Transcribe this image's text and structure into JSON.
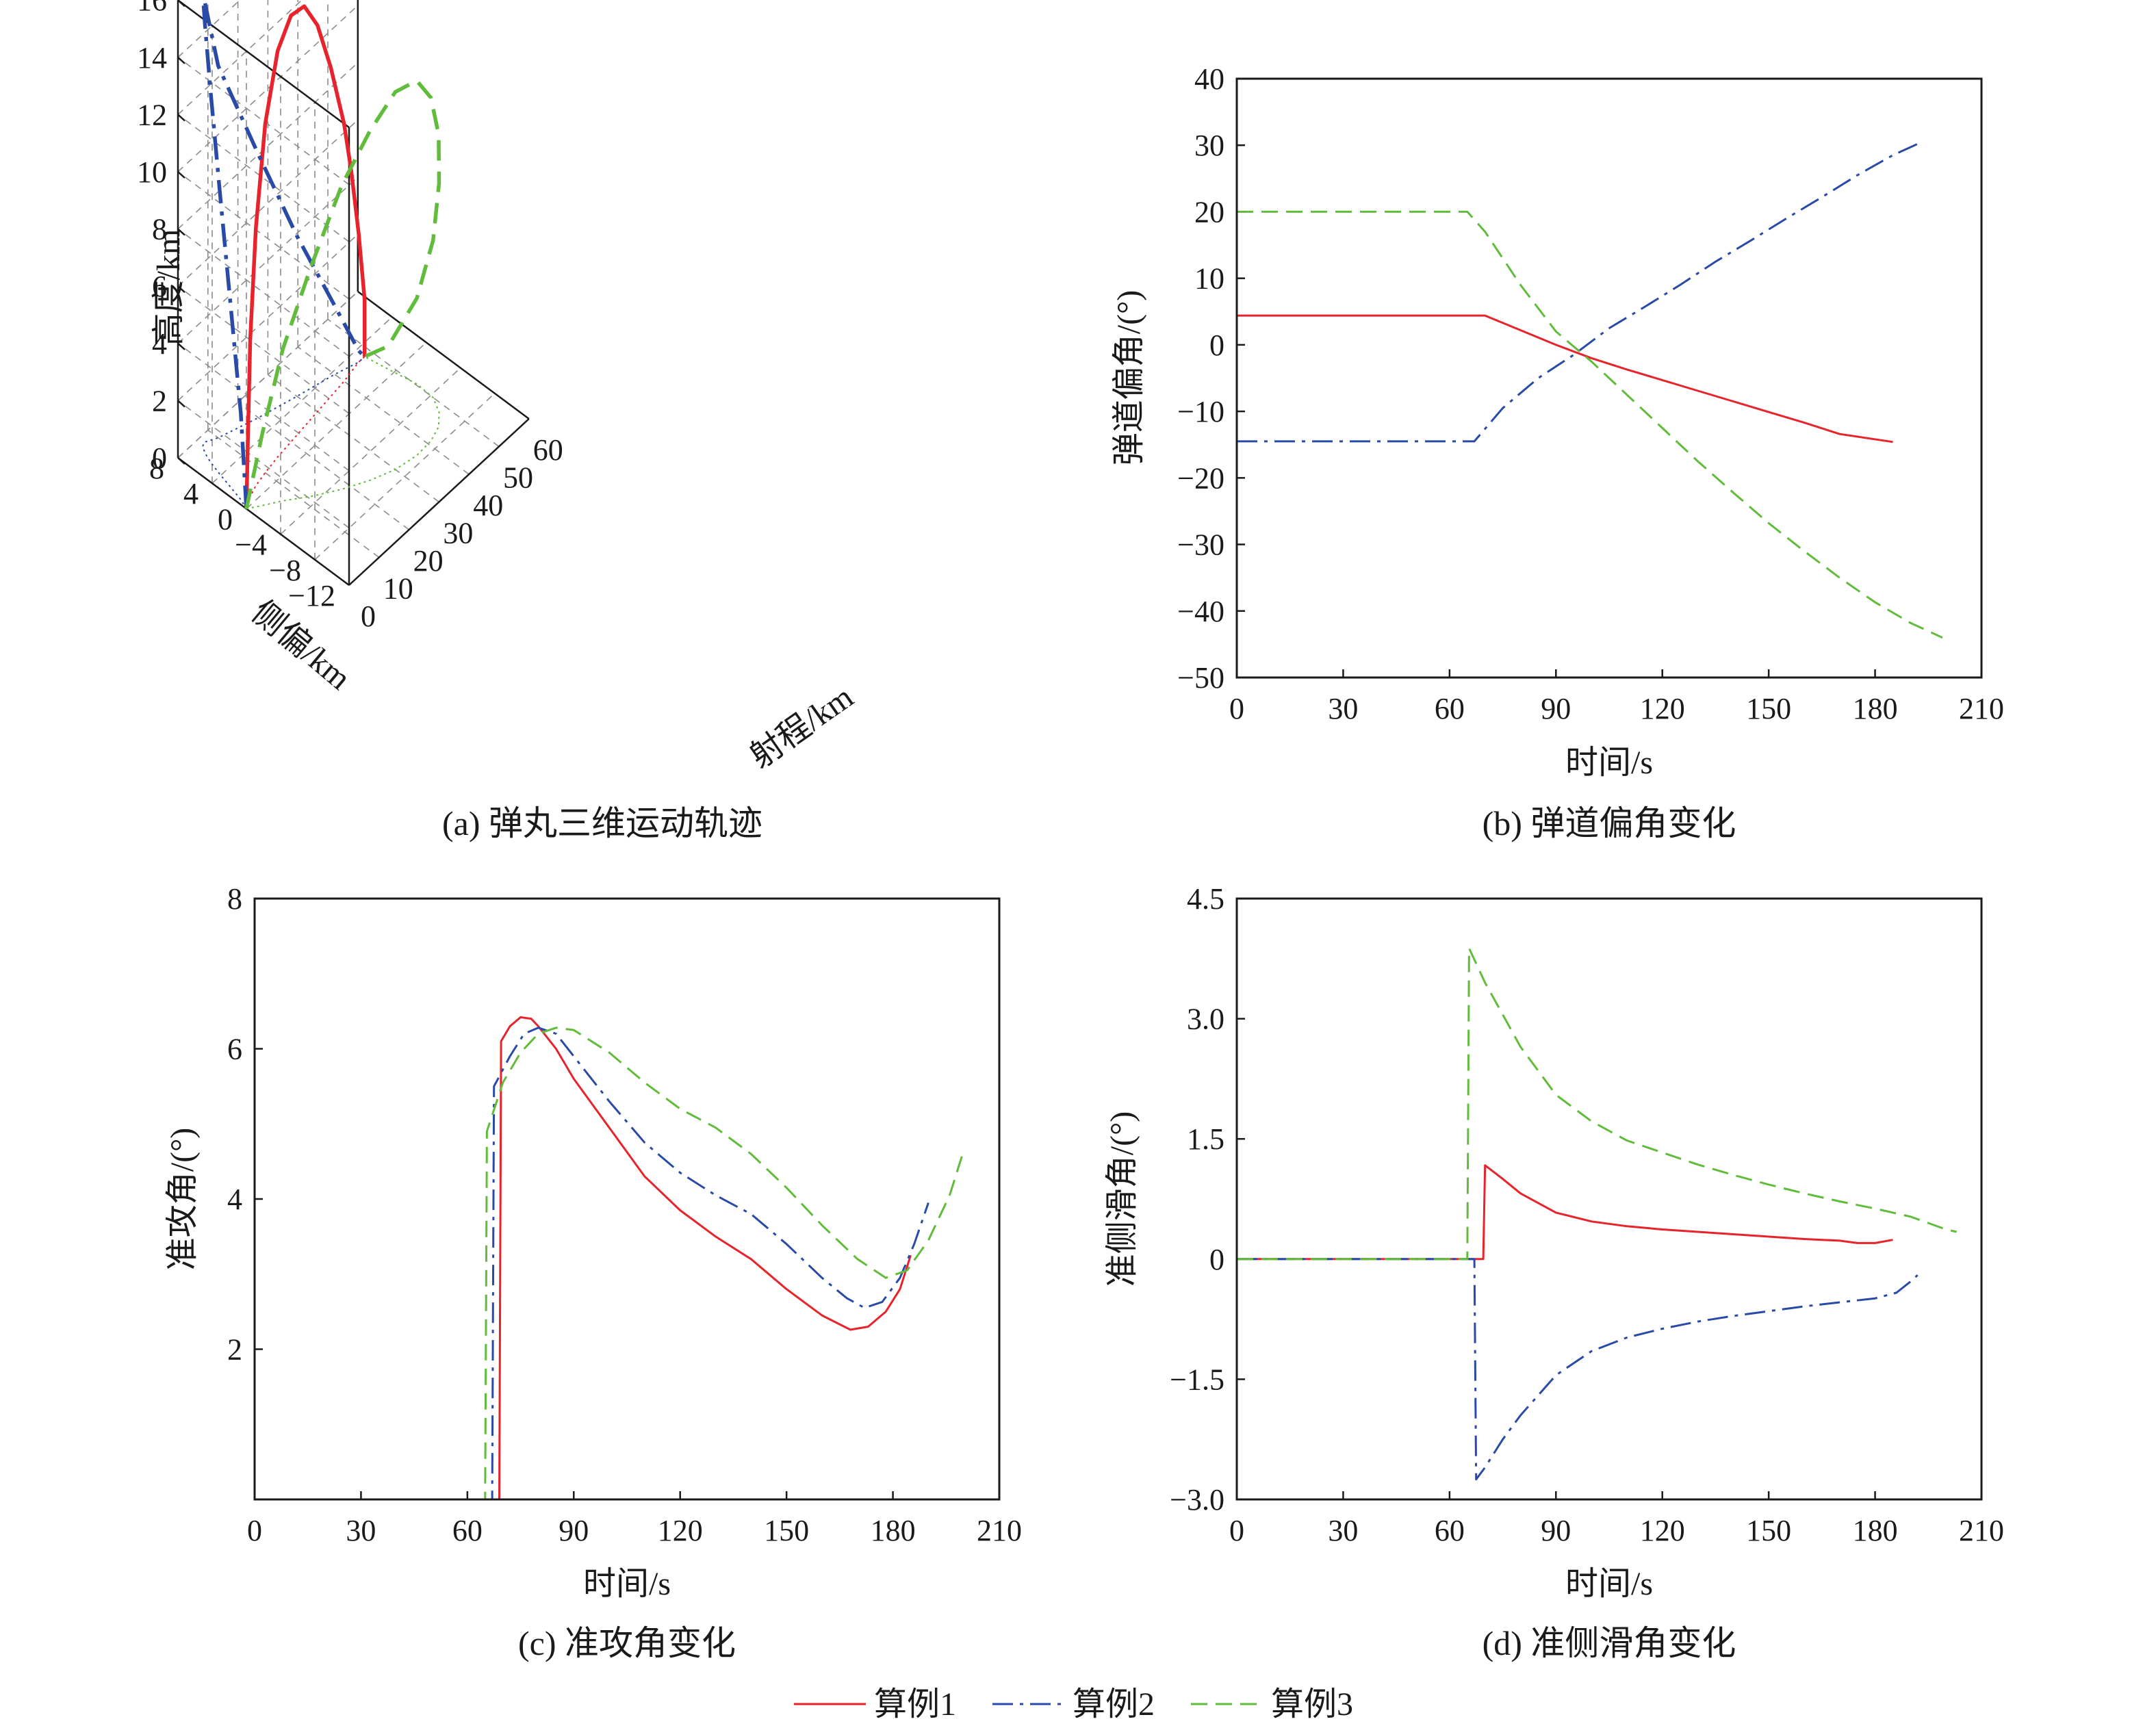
{
  "colors": {
    "case1": "#e8232b",
    "case2": "#2a4aa8",
    "case3": "#62bc3b",
    "axis": "#1a1a1a"
  },
  "legend": {
    "items": [
      "算例1",
      "算例2",
      "算例3"
    ]
  },
  "chart_data": [
    {
      "id": "a",
      "type": "line3d",
      "caption": "(a) 弹丸三维运动轨迹",
      "zlabel": "高度/km",
      "ylabel": "侧偏/km",
      "xlabel": "射程/km",
      "z_ticks": [
        "0",
        "2",
        "4",
        "6",
        "8",
        "10",
        "12",
        "14",
        "16"
      ],
      "y_ticks": [
        "8",
        "4",
        "0",
        "−4",
        "−8",
        "−12"
      ],
      "x_ticks": [
        "0",
        "10",
        "20",
        "30",
        "40",
        "50",
        "60"
      ],
      "series": [
        {
          "name": "算例1",
          "style": "solid",
          "points": [
            [
              0,
              0,
              0
            ],
            [
              1,
              0.2,
              2
            ],
            [
              3,
              0.6,
              5.5
            ],
            [
              6,
              1,
              9
            ],
            [
              10,
              1.3,
              12.2
            ],
            [
              15,
              1.6,
              14.2
            ],
            [
              20,
              1.8,
              14.9
            ],
            [
              25,
              2,
              14.7
            ],
            [
              30,
              2.2,
              13.5
            ],
            [
              35,
              2.4,
              11.5
            ],
            [
              40,
              2.6,
              9
            ],
            [
              43,
              2.8,
              7
            ],
            [
              46,
              3,
              4.5
            ],
            [
              48,
              3,
              2
            ],
            [
              48,
              3,
              0
            ]
          ]
        },
        {
          "name": "算例2",
          "style": "dashdot",
          "points": [
            [
              0,
              0,
              0
            ],
            [
              1,
              1,
              3
            ],
            [
              2,
              2.6,
              6.5
            ],
            [
              3,
              4.2,
              10
            ],
            [
              4,
              5.6,
              13
            ],
            [
              5,
              6.6,
              15
            ],
            [
              6,
              7.2,
              15.8
            ],
            [
              7,
              7.4,
              15.5
            ],
            [
              10,
              6.8,
              13
            ],
            [
              20,
              5.6,
              9.2
            ],
            [
              30,
              4.6,
              5.6
            ],
            [
              40,
              3.7,
              2.4
            ],
            [
              46,
              3,
              0.4
            ],
            [
              48,
              3,
              0
            ]
          ]
        },
        {
          "name": "算例3",
          "style": "dashed",
          "points": [
            [
              0,
              0,
              0
            ],
            [
              3,
              -0.8,
              2.5
            ],
            [
              7,
              -1.8,
              5.3
            ],
            [
              12,
              -3.3,
              8
            ],
            [
              18,
              -4.8,
              10.6
            ],
            [
              24,
              -6,
              12.2
            ],
            [
              30,
              -6.9,
              13.2
            ],
            [
              36,
              -7.3,
              13.1
            ],
            [
              41,
              -7.2,
              12
            ],
            [
              45,
              -6.7,
              10.2
            ],
            [
              48,
              -5.7,
              8
            ],
            [
              50,
              -4.3,
              5.5
            ],
            [
              50.3,
              -2.3,
              3
            ],
            [
              49,
              0.6,
              0.8
            ],
            [
              48,
              3,
              0
            ]
          ]
        }
      ]
    },
    {
      "id": "b",
      "type": "line",
      "caption": "(b) 弹道偏角变化",
      "xlabel": "时间/s",
      "ylabel": "弹道偏角/(°)",
      "xlim": [
        0,
        210
      ],
      "ylim": [
        -50,
        40
      ],
      "x_ticks": [
        "0",
        "30",
        "60",
        "90",
        "120",
        "150",
        "180",
        "210"
      ],
      "y_ticks": [
        "−50",
        "−40",
        "−30",
        "−20",
        "−10",
        "0",
        "10",
        "20",
        "30",
        "40"
      ],
      "series": [
        {
          "name": "算例1",
          "style": "solid",
          "points": [
            [
              0,
              4.4
            ],
            [
              70,
              4.4
            ],
            [
              80,
              2.2
            ],
            [
              90,
              0
            ],
            [
              100,
              -2
            ],
            [
              110,
              -3.7
            ],
            [
              120,
              -5.3
            ],
            [
              130,
              -6.9
            ],
            [
              140,
              -8.5
            ],
            [
              150,
              -10.1
            ],
            [
              160,
              -11.7
            ],
            [
              170,
              -13.4
            ],
            [
              185,
              -14.6
            ]
          ]
        },
        {
          "name": "算例2",
          "style": "dashdot",
          "points": [
            [
              0,
              -14.5
            ],
            [
              67,
              -14.5
            ],
            [
              75,
              -9.5
            ],
            [
              85,
              -5
            ],
            [
              95,
              -1.5
            ],
            [
              105,
              2.5
            ],
            [
              115,
              5.7
            ],
            [
              125,
              9
            ],
            [
              135,
              12.5
            ],
            [
              145,
              15.7
            ],
            [
              155,
              19
            ],
            [
              165,
              22.2
            ],
            [
              175,
              25.5
            ],
            [
              185,
              28.5
            ],
            [
              192,
              30.2
            ]
          ]
        },
        {
          "name": "算例3",
          "style": "dashed",
          "points": [
            [
              0,
              20
            ],
            [
              65,
              20
            ],
            [
              70,
              17
            ],
            [
              80,
              9
            ],
            [
              90,
              2
            ],
            [
              100,
              -2.5
            ],
            [
              110,
              -7.5
            ],
            [
              120,
              -12.5
            ],
            [
              130,
              -17.5
            ],
            [
              140,
              -22.2
            ],
            [
              150,
              -26.8
            ],
            [
              160,
              -31
            ],
            [
              170,
              -35
            ],
            [
              180,
              -38.7
            ],
            [
              190,
              -41.8
            ],
            [
              199,
              -44
            ]
          ]
        }
      ]
    },
    {
      "id": "c",
      "type": "line",
      "caption": "(c) 准攻角变化",
      "xlabel": "时间/s",
      "ylabel": "准攻角/(°)",
      "xlim": [
        0,
        210
      ],
      "ylim": [
        0,
        8
      ],
      "x_ticks": [
        "0",
        "30",
        "60",
        "90",
        "120",
        "150",
        "180",
        "210"
      ],
      "y_ticks": [
        "2",
        "4",
        "6",
        "8"
      ],
      "series": [
        {
          "name": "算例1",
          "style": "solid",
          "points": [
            [
              0,
              0
            ],
            [
              69,
              0
            ],
            [
              69.5,
              6.1
            ],
            [
              72,
              6.3
            ],
            [
              75,
              6.42
            ],
            [
              78,
              6.4
            ],
            [
              80,
              6.3
            ],
            [
              85,
              6
            ],
            [
              90,
              5.6
            ],
            [
              100,
              4.95
            ],
            [
              110,
              4.3
            ],
            [
              120,
              3.85
            ],
            [
              130,
              3.5
            ],
            [
              140,
              3.2
            ],
            [
              150,
              2.8
            ],
            [
              160,
              2.45
            ],
            [
              168,
              2.26
            ],
            [
              173,
              2.3
            ],
            [
              178,
              2.5
            ],
            [
              182,
              2.8
            ],
            [
              185,
              3.25
            ]
          ]
        },
        {
          "name": "算例2",
          "style": "dashdot",
          "points": [
            [
              0,
              0
            ],
            [
              67,
              0
            ],
            [
              67.5,
              5.5
            ],
            [
              72,
              5.9
            ],
            [
              76,
              6.2
            ],
            [
              80,
              6.28
            ],
            [
              85,
              6.2
            ],
            [
              90,
              5.9
            ],
            [
              100,
              5.3
            ],
            [
              110,
              4.75
            ],
            [
              120,
              4.35
            ],
            [
              130,
              4.05
            ],
            [
              140,
              3.8
            ],
            [
              150,
              3.4
            ],
            [
              160,
              2.95
            ],
            [
              167,
              2.68
            ],
            [
              172,
              2.55
            ],
            [
              177,
              2.63
            ],
            [
              182,
              2.95
            ],
            [
              186,
              3.4
            ],
            [
              190,
              3.95
            ]
          ]
        },
        {
          "name": "算例3",
          "style": "dashed",
          "points": [
            [
              0,
              0
            ],
            [
              65,
              0
            ],
            [
              65.5,
              4.9
            ],
            [
              70,
              5.55
            ],
            [
              75,
              5.95
            ],
            [
              80,
              6.2
            ],
            [
              85,
              6.28
            ],
            [
              90,
              6.25
            ],
            [
              100,
              5.95
            ],
            [
              110,
              5.55
            ],
            [
              120,
              5.2
            ],
            [
              130,
              4.95
            ],
            [
              140,
              4.6
            ],
            [
              150,
              4.15
            ],
            [
              160,
              3.65
            ],
            [
              170,
              3.2
            ],
            [
              178,
              2.95
            ],
            [
              184,
              3.05
            ],
            [
              190,
              3.45
            ],
            [
              196,
              4.05
            ],
            [
              200,
              4.65
            ]
          ]
        }
      ]
    },
    {
      "id": "d",
      "type": "line",
      "caption": "(d) 准侧滑角变化",
      "xlabel": "时间/s",
      "ylabel": "准侧滑角/(°)",
      "xlim": [
        0,
        210
      ],
      "ylim": [
        -3.0,
        4.5
      ],
      "x_ticks": [
        "0",
        "30",
        "60",
        "90",
        "120",
        "150",
        "180",
        "210"
      ],
      "y_ticks": [
        "−3.0",
        "−1.5",
        "0",
        "1.5",
        "3.0",
        "4.5"
      ],
      "series": [
        {
          "name": "算例1",
          "style": "solid",
          "points": [
            [
              0,
              0
            ],
            [
              69.5,
              0
            ],
            [
              70,
              1.17
            ],
            [
              75,
              1
            ],
            [
              80,
              0.82
            ],
            [
              90,
              0.58
            ],
            [
              100,
              0.47
            ],
            [
              110,
              0.41
            ],
            [
              120,
              0.37
            ],
            [
              130,
              0.34
            ],
            [
              140,
              0.31
            ],
            [
              150,
              0.28
            ],
            [
              160,
              0.25
            ],
            [
              170,
              0.23
            ],
            [
              175,
              0.2
            ],
            [
              180,
              0.2
            ],
            [
              185,
              0.24
            ]
          ]
        },
        {
          "name": "算例2",
          "style": "dashdot",
          "points": [
            [
              0,
              0
            ],
            [
              67,
              0
            ],
            [
              67.5,
              -2.75
            ],
            [
              70,
              -2.6
            ],
            [
              75,
              -2.25
            ],
            [
              80,
              -1.95
            ],
            [
              90,
              -1.45
            ],
            [
              100,
              -1.15
            ],
            [
              110,
              -0.98
            ],
            [
              120,
              -0.87
            ],
            [
              130,
              -0.78
            ],
            [
              140,
              -0.71
            ],
            [
              150,
              -0.65
            ],
            [
              160,
              -0.59
            ],
            [
              170,
              -0.54
            ],
            [
              180,
              -0.49
            ],
            [
              186,
              -0.42
            ],
            [
              190,
              -0.28
            ],
            [
              192,
              -0.2
            ]
          ]
        },
        {
          "name": "算例3",
          "style": "dashed",
          "points": [
            [
              0,
              0
            ],
            [
              65,
              0
            ],
            [
              65.5,
              3.88
            ],
            [
              70,
              3.45
            ],
            [
              75,
              3.05
            ],
            [
              80,
              2.65
            ],
            [
              90,
              2.05
            ],
            [
              100,
              1.72
            ],
            [
              110,
              1.48
            ],
            [
              120,
              1.33
            ],
            [
              130,
              1.18
            ],
            [
              140,
              1.05
            ],
            [
              150,
              0.93
            ],
            [
              160,
              0.82
            ],
            [
              170,
              0.72
            ],
            [
              180,
              0.63
            ],
            [
              190,
              0.53
            ],
            [
              195,
              0.45
            ],
            [
              200,
              0.37
            ],
            [
              203,
              0.34
            ]
          ]
        }
      ]
    }
  ]
}
